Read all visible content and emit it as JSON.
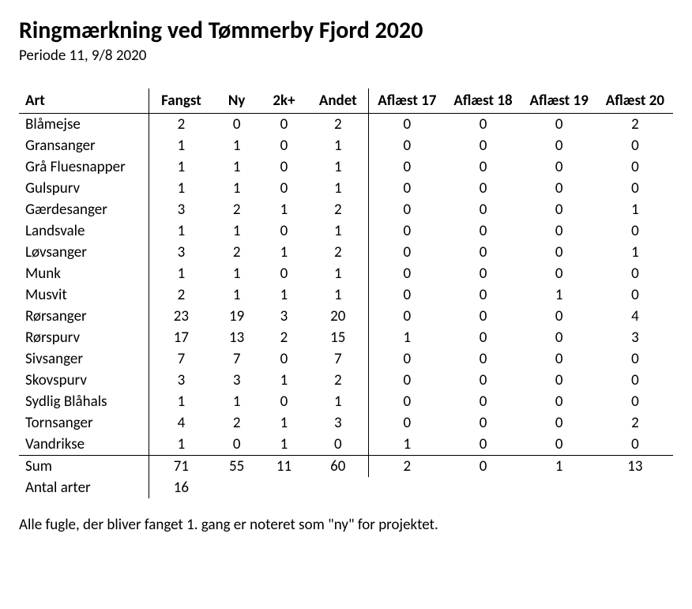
{
  "title": "Ringmærkning ved Tømmerby Fjord 2020",
  "subtitle": "Periode 11, 9/8 2020",
  "columns": [
    "Art",
    "Fangst",
    "Ny",
    "2k+",
    "Andet",
    "Aflæst 17",
    "Aflæst 18",
    "Aflæst 19",
    "Aflæst 20"
  ],
  "rows": [
    {
      "art": "Blåmejse",
      "fangst": 2,
      "ny": 0,
      "k2": 0,
      "andet": 2,
      "a17": 0,
      "a18": 0,
      "a19": 0,
      "a20": 2
    },
    {
      "art": "Gransanger",
      "fangst": 1,
      "ny": 1,
      "k2": 0,
      "andet": 1,
      "a17": 0,
      "a18": 0,
      "a19": 0,
      "a20": 0
    },
    {
      "art": "Grå Fluesnapper",
      "fangst": 1,
      "ny": 1,
      "k2": 0,
      "andet": 1,
      "a17": 0,
      "a18": 0,
      "a19": 0,
      "a20": 0
    },
    {
      "art": "Gulspurv",
      "fangst": 1,
      "ny": 1,
      "k2": 0,
      "andet": 1,
      "a17": 0,
      "a18": 0,
      "a19": 0,
      "a20": 0
    },
    {
      "art": "Gærdesanger",
      "fangst": 3,
      "ny": 2,
      "k2": 1,
      "andet": 2,
      "a17": 0,
      "a18": 0,
      "a19": 0,
      "a20": 1
    },
    {
      "art": "Landsvale",
      "fangst": 1,
      "ny": 1,
      "k2": 0,
      "andet": 1,
      "a17": 0,
      "a18": 0,
      "a19": 0,
      "a20": 0
    },
    {
      "art": "Løvsanger",
      "fangst": 3,
      "ny": 2,
      "k2": 1,
      "andet": 2,
      "a17": 0,
      "a18": 0,
      "a19": 0,
      "a20": 1
    },
    {
      "art": "Munk",
      "fangst": 1,
      "ny": 1,
      "k2": 0,
      "andet": 1,
      "a17": 0,
      "a18": 0,
      "a19": 0,
      "a20": 0
    },
    {
      "art": "Musvit",
      "fangst": 2,
      "ny": 1,
      "k2": 1,
      "andet": 1,
      "a17": 0,
      "a18": 0,
      "a19": 1,
      "a20": 0
    },
    {
      "art": "Rørsanger",
      "fangst": 23,
      "ny": 19,
      "k2": 3,
      "andet": 20,
      "a17": 0,
      "a18": 0,
      "a19": 0,
      "a20": 4
    },
    {
      "art": "Rørspurv",
      "fangst": 17,
      "ny": 13,
      "k2": 2,
      "andet": 15,
      "a17": 1,
      "a18": 0,
      "a19": 0,
      "a20": 3
    },
    {
      "art": "Sivsanger",
      "fangst": 7,
      "ny": 7,
      "k2": 0,
      "andet": 7,
      "a17": 0,
      "a18": 0,
      "a19": 0,
      "a20": 0
    },
    {
      "art": "Skovspurv",
      "fangst": 3,
      "ny": 3,
      "k2": 1,
      "andet": 2,
      "a17": 0,
      "a18": 0,
      "a19": 0,
      "a20": 0
    },
    {
      "art": "Sydlig Blåhals",
      "fangst": 1,
      "ny": 1,
      "k2": 0,
      "andet": 1,
      "a17": 0,
      "a18": 0,
      "a19": 0,
      "a20": 0
    },
    {
      "art": "Tornsanger",
      "fangst": 4,
      "ny": 2,
      "k2": 1,
      "andet": 3,
      "a17": 0,
      "a18": 0,
      "a19": 0,
      "a20": 2
    },
    {
      "art": "Vandrikse",
      "fangst": 1,
      "ny": 0,
      "k2": 1,
      "andet": 0,
      "a17": 1,
      "a18": 0,
      "a19": 0,
      "a20": 0
    }
  ],
  "sum": {
    "label": "Sum",
    "fangst": 71,
    "ny": 55,
    "k2": 11,
    "andet": 60,
    "a17": 2,
    "a18": 0,
    "a19": 1,
    "a20": 13
  },
  "antal": {
    "label": "Antal arter",
    "value": 16
  },
  "footnote": "Alle fugle, der bliver fanget 1. gang er noteret som \"ny\" for projektet."
}
